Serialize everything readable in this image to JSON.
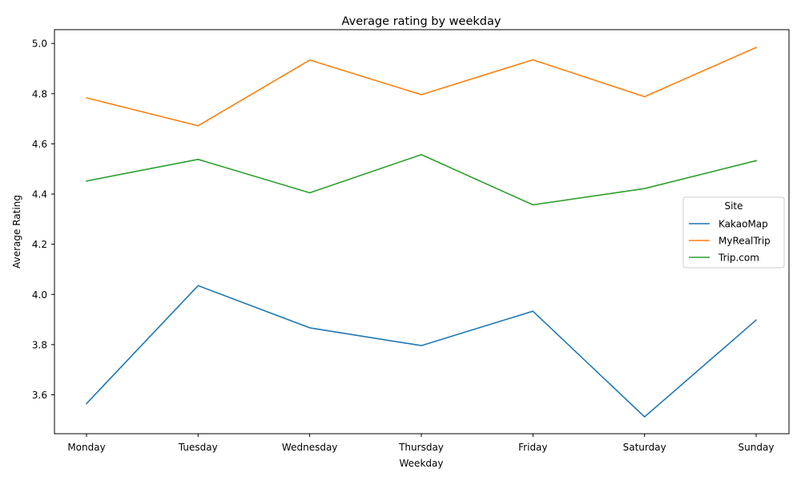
{
  "chart_data": {
    "type": "line",
    "title": "Average rating by weekday",
    "xlabel": "Weekday",
    "ylabel": "Average Rating",
    "categories": [
      "Monday",
      "Tuesday",
      "Wednesday",
      "Thursday",
      "Friday",
      "Saturday",
      "Sunday"
    ],
    "ylim": [
      3.445,
      5.055
    ],
    "yticks": [
      "3.6",
      "3.8",
      "4.0",
      "4.2",
      "4.4",
      "4.6",
      "4.8",
      "5.0"
    ],
    "grid": false,
    "legend": {
      "title": "Site",
      "placement": "center-right"
    },
    "series": [
      {
        "name": "KakaoMap",
        "color": "#1f77b4",
        "values": [
          3.565,
          4.035,
          3.867,
          3.796,
          3.933,
          3.512,
          3.898
        ]
      },
      {
        "name": "MyRealTrip",
        "color": "#ff7f0e",
        "values": [
          4.783,
          4.672,
          4.934,
          4.796,
          4.935,
          4.788,
          4.984
        ]
      },
      {
        "name": "Trip.com",
        "color": "#2ca02c",
        "values": [
          4.452,
          4.538,
          4.405,
          4.557,
          4.357,
          4.422,
          4.533
        ]
      }
    ]
  }
}
